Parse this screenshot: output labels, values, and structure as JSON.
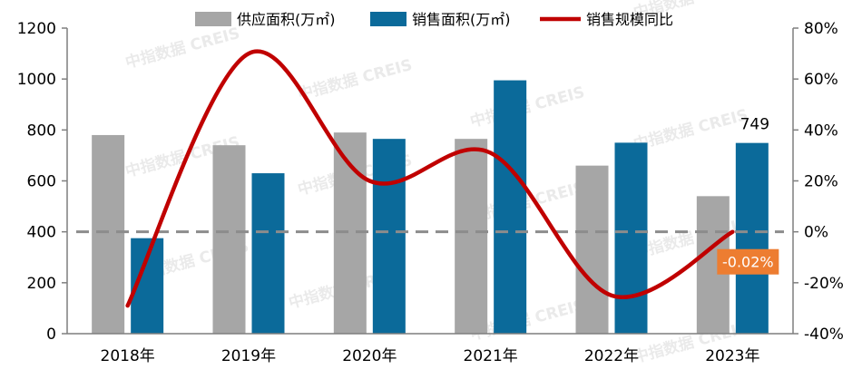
{
  "chart_data": {
    "type": "bar",
    "categories": [
      "2018年",
      "2019年",
      "2020年",
      "2021年",
      "2022年",
      "2023年"
    ],
    "series": [
      {
        "name": "供应面积(万㎡)",
        "type": "bar",
        "axis": "left",
        "color": "#A6A6A6",
        "values": [
          780,
          740,
          790,
          765,
          660,
          540
        ]
      },
      {
        "name": "销售面积(万㎡)",
        "type": "bar",
        "axis": "left",
        "color": "#0B6A9A",
        "values": [
          375,
          630,
          765,
          995,
          750,
          749
        ]
      },
      {
        "name": "销售规模同比",
        "type": "line",
        "axis": "right",
        "color": "#C00000",
        "values": [
          -29,
          70,
          20,
          31,
          -25,
          -0.02
        ]
      }
    ],
    "left_axis": {
      "min": 0,
      "max": 1200,
      "ticks": [
        0,
        200,
        400,
        600,
        800,
        1000,
        1200
      ]
    },
    "right_axis": {
      "min": -40,
      "max": 80,
      "unit": "%",
      "ticks": [
        -40,
        -20,
        0,
        20,
        40,
        60,
        80
      ]
    },
    "reference_line": {
      "axis": "right",
      "value": 0,
      "style": "dashed",
      "color": "#8C8C8C"
    },
    "data_labels": [
      {
        "series": 1,
        "index": 5,
        "text": "749"
      },
      {
        "series": 2,
        "index": 5,
        "text": "-0.02%",
        "background": "#ED7D31",
        "color": "#FFFFFF"
      }
    ],
    "watermark": "中指数据 CREIS",
    "legend_position": "top",
    "grid": false
  }
}
